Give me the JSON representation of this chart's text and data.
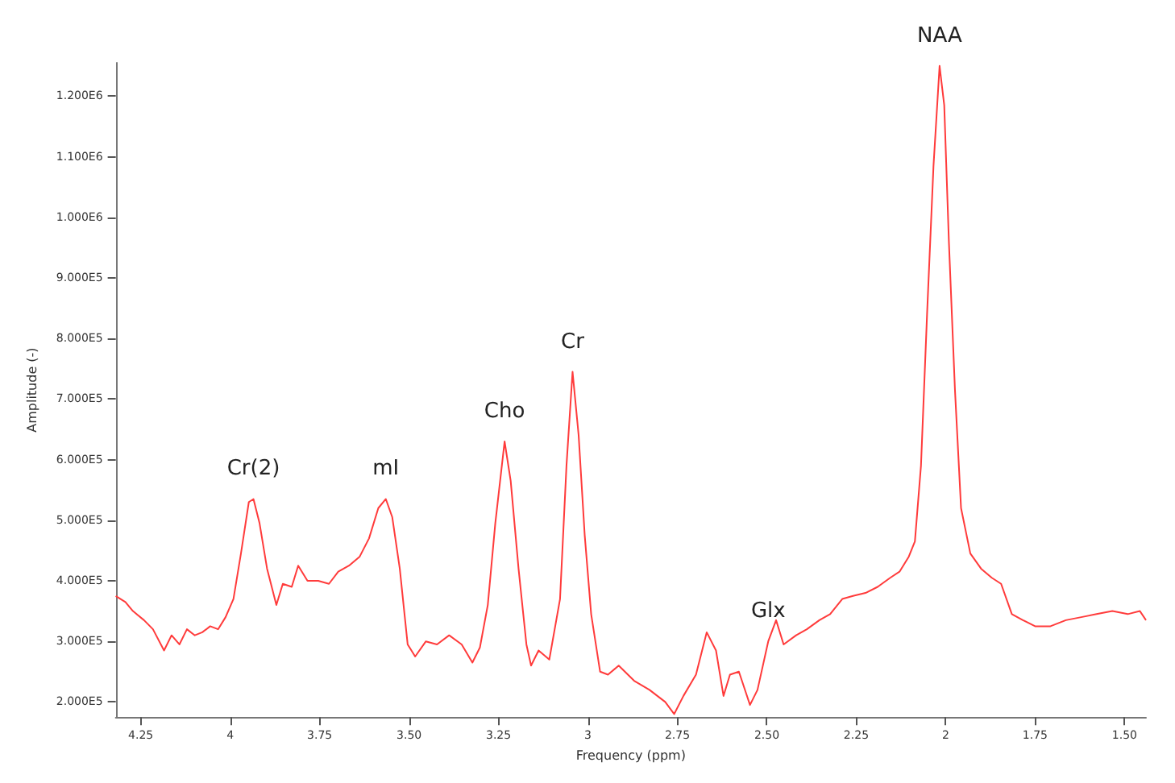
{
  "chart_data": {
    "type": "line",
    "xlabel": "Frequency (ppm)",
    "ylabel": "Amplitude (-)",
    "xlim": [
      4.32,
      1.44
    ],
    "ylim": [
      175000,
      1255000
    ],
    "xticks": [
      4.25,
      {
        "value": 4,
        "label": "4"
      },
      3.75,
      {
        "value": 3.5,
        "label": "3.50"
      },
      3.25,
      {
        "value": 3,
        "label": "3"
      },
      2.75,
      {
        "value": 2.5,
        "label": "2.50"
      },
      2.25,
      {
        "value": 2,
        "label": "2"
      },
      1.75,
      {
        "value": 1.5,
        "label": "1.50"
      }
    ],
    "yticks": [
      {
        "value": 200000,
        "label": "2.000E5"
      },
      {
        "value": 300000,
        "label": "3.000E5"
      },
      {
        "value": 400000,
        "label": "4.000E5"
      },
      {
        "value": 500000,
        "label": "5.000E5"
      },
      {
        "value": 600000,
        "label": "6.000E5"
      },
      {
        "value": 700000,
        "label": "7.000E5"
      },
      {
        "value": 800000,
        "label": "8.000E5"
      },
      {
        "value": 900000,
        "label": "9.000E5"
      },
      {
        "value": 1000000,
        "label": "1.000E6"
      },
      {
        "value": 1100000,
        "label": "1.100E6"
      },
      {
        "value": 1200000,
        "label": "1.200E6"
      }
    ],
    "grid": false,
    "marker": "none",
    "line_style": "solid",
    "series": [
      {
        "color": "#ff3b3b",
        "x": [
          4.32,
          4.293,
          4.272,
          4.241,
          4.216,
          4.185,
          4.164,
          4.142,
          4.121,
          4.099,
          4.078,
          4.056,
          4.034,
          4.013,
          3.991,
          3.97,
          3.948,
          3.935,
          3.918,
          3.897,
          3.871,
          3.853,
          3.828,
          3.81,
          3.784,
          3.754,
          3.724,
          3.698,
          3.668,
          3.638,
          3.612,
          3.586,
          3.565,
          3.547,
          3.526,
          3.504,
          3.483,
          3.453,
          3.422,
          3.388,
          3.353,
          3.323,
          3.302,
          3.28,
          3.259,
          3.233,
          3.216,
          3.194,
          3.172,
          3.159,
          3.138,
          3.108,
          3.078,
          3.06,
          3.043,
          3.026,
          3.009,
          2.991,
          2.966,
          2.944,
          2.914,
          2.871,
          2.828,
          2.784,
          2.759,
          2.733,
          2.698,
          2.668,
          2.642,
          2.621,
          2.603,
          2.578,
          2.547,
          2.526,
          2.496,
          2.474,
          2.453,
          2.418,
          2.388,
          2.353,
          2.323,
          2.289,
          2.259,
          2.224,
          2.19,
          2.155,
          2.129,
          2.103,
          2.086,
          2.069,
          2.052,
          2.034,
          2.017,
          2.004,
          1.991,
          1.974,
          1.957,
          1.931,
          1.901,
          1.871,
          1.845,
          1.815,
          1.784,
          1.75,
          1.707,
          1.664,
          1.621,
          1.578,
          1.534,
          1.491,
          1.457,
          1.44
        ],
        "values": [
          375000,
          365000,
          350000,
          335000,
          320000,
          285000,
          310000,
          295000,
          320000,
          310000,
          315000,
          325000,
          320000,
          340000,
          370000,
          445000,
          530000,
          535000,
          495000,
          420000,
          360000,
          395000,
          390000,
          425000,
          400000,
          400000,
          395000,
          415000,
          425000,
          440000,
          470000,
          520000,
          535000,
          505000,
          420000,
          295000,
          275000,
          300000,
          295000,
          310000,
          295000,
          265000,
          290000,
          360000,
          495000,
          630000,
          565000,
          420000,
          295000,
          260000,
          285000,
          270000,
          370000,
          590000,
          745000,
          640000,
          475000,
          345000,
          250000,
          245000,
          260000,
          235000,
          220000,
          200000,
          180000,
          210000,
          245000,
          315000,
          285000,
          210000,
          245000,
          250000,
          195000,
          220000,
          300000,
          335000,
          295000,
          310000,
          320000,
          335000,
          345000,
          370000,
          375000,
          380000,
          390000,
          405000,
          415000,
          440000,
          465000,
          590000,
          840000,
          1085000,
          1250000,
          1185000,
          960000,
          715000,
          520000,
          445000,
          420000,
          405000,
          395000,
          345000,
          335000,
          325000,
          325000,
          335000,
          340000,
          345000,
          350000,
          345000,
          350000,
          335000
        ]
      }
    ],
    "annotations": [
      {
        "text": "Cr(2)",
        "x": 3.935,
        "y": 535000
      },
      {
        "text": "mI",
        "x": 3.565,
        "y": 535000
      },
      {
        "text": "Cho",
        "x": 3.233,
        "y": 630000
      },
      {
        "text": "Cr",
        "x": 3.043,
        "y": 745000
      },
      {
        "text": "Glx",
        "x": 2.496,
        "y": 300000
      },
      {
        "text": "NAA",
        "x": 2.017,
        "y": 1250000
      }
    ]
  }
}
